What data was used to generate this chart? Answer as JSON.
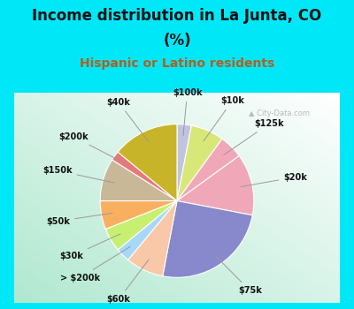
{
  "title_line1": "Income distribution in La Junta, CO",
  "title_line2": "(%)",
  "subtitle": "Hispanic or Latino residents",
  "labels": [
    "$100k",
    "$10k",
    "$125k",
    "$20k",
    "$75k",
    "$60k",
    "> $200k",
    "$30k",
    "$50k",
    "$150k",
    "$200k",
    "$40k"
  ],
  "values": [
    3,
    7,
    5,
    13,
    25,
    8,
    3,
    5,
    6,
    9,
    2,
    14
  ],
  "colors": [
    "#c0c4e0",
    "#d8e878",
    "#f0a8b8",
    "#f0a8b8",
    "#8888cc",
    "#f8c8a8",
    "#a8d8f8",
    "#c8f070",
    "#f8b060",
    "#c8b898",
    "#e87878",
    "#c8b428"
  ],
  "fig_bg": "#00e8f8",
  "chart_bg_inner": "#e8f8f0",
  "title_color": "#111111",
  "subtitle_color": "#b06020",
  "label_color": "#111111",
  "title_fontsize": 12,
  "subtitle_fontsize": 10,
  "label_fontsize": 7
}
